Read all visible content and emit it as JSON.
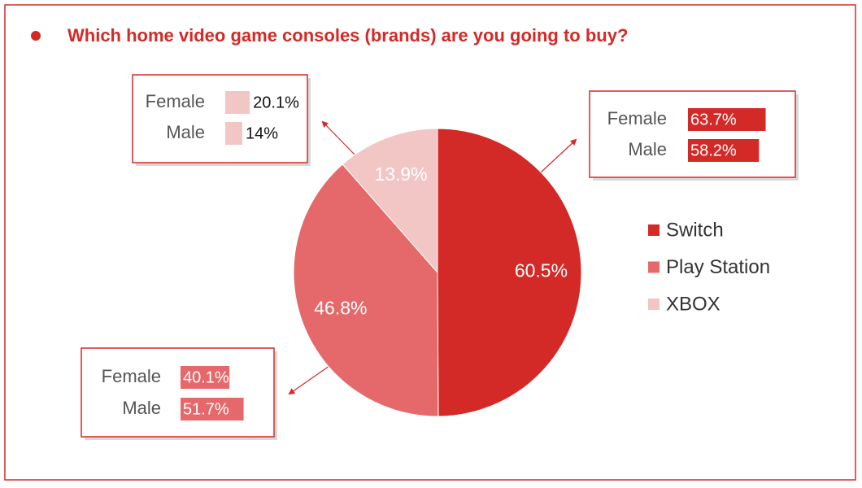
{
  "chart_data": [
    {
      "type": "pie",
      "title": "Which home video game consoles (brands) are you going to buy?",
      "categories": [
        "Switch",
        "Play Station",
        "XBOX"
      ],
      "values": [
        60.5,
        46.8,
        13.9
      ],
      "value_labels": [
        "60.5%",
        "46.8%",
        "13.9%"
      ],
      "colors": [
        "#d42a27",
        "#e5696a",
        "#f3c6c6"
      ],
      "legend": "right"
    },
    {
      "type": "bar",
      "orientation": "horizontal",
      "categories": [
        "Female",
        "Male"
      ],
      "values": [
        63.7,
        58.2
      ],
      "value_labels": [
        "63.7%",
        "58.2%"
      ],
      "color": "#d42a27"
    },
    {
      "type": "bar",
      "orientation": "horizontal",
      "categories": [
        "Female",
        "Male"
      ],
      "values": [
        40.1,
        51.7
      ],
      "value_labels": [
        "40.1%",
        "51.7%"
      ],
      "color": "#e5696a"
    },
    {
      "type": "bar",
      "orientation": "horizontal",
      "categories": [
        "Female",
        "Male"
      ],
      "values": [
        20.1,
        14
      ],
      "value_labels": [
        "20.1%",
        "14%"
      ],
      "color": "#f3c6c6"
    }
  ]
}
